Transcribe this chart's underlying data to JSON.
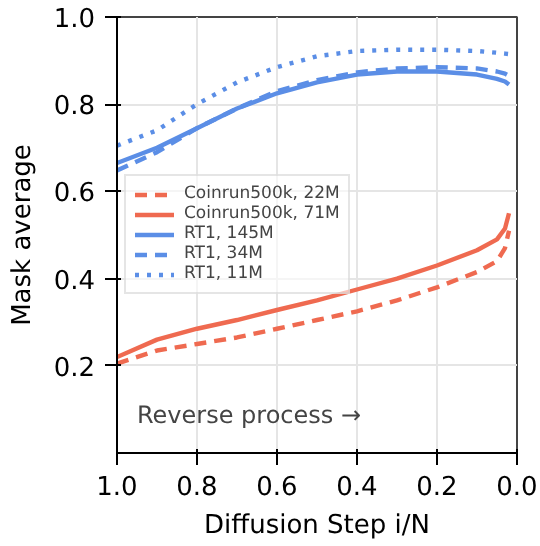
{
  "chart_data": {
    "type": "line",
    "xlabel": "Diffusion Step i/N",
    "ylabel": "Mask average",
    "x": [
      1.0,
      0.9,
      0.8,
      0.7,
      0.6,
      0.5,
      0.4,
      0.3,
      0.2,
      0.1,
      0.05,
      0.03,
      0.02
    ],
    "xlim": [
      1.0,
      0.0
    ],
    "xticks": [
      {
        "value": 1.0,
        "label": "1.0"
      },
      0.8,
      0.6,
      0.4,
      0.2,
      {
        "value": 0.0,
        "label": "0.0"
      }
    ],
    "ylim": [
      0.0,
      1.0
    ],
    "yticks": [
      0.2,
      0.4,
      0.6,
      0.8,
      {
        "value": 1.0,
        "label": "1.0"
      }
    ],
    "grid": true,
    "legend": "left",
    "annotations": [
      "Reverse process →"
    ],
    "series": [
      {
        "name": "Coinrun500k, 22M",
        "color": "#ef6a50",
        "line_style": "dashed",
        "values": [
          0.205,
          0.235,
          0.25,
          0.265,
          0.285,
          0.305,
          0.325,
          0.35,
          0.38,
          0.415,
          0.44,
          0.47,
          0.51
        ]
      },
      {
        "name": "Coinrun500k, 71M",
        "color": "#ef6a50",
        "line_style": "solid",
        "values": [
          0.22,
          0.26,
          0.285,
          0.305,
          0.328,
          0.35,
          0.375,
          0.4,
          0.43,
          0.465,
          0.49,
          0.515,
          0.55
        ]
      },
      {
        "name": "RT1, 145M",
        "color": "#5b8ee6",
        "line_style": "solid",
        "values": [
          0.665,
          0.7,
          0.745,
          0.79,
          0.825,
          0.85,
          0.868,
          0.875,
          0.875,
          0.868,
          0.858,
          0.852,
          0.845
        ]
      },
      {
        "name": "RT1, 34M",
        "color": "#5b8ee6",
        "line_style": "dashed",
        "values": [
          0.648,
          0.69,
          0.745,
          0.79,
          0.83,
          0.855,
          0.873,
          0.882,
          0.885,
          0.882,
          0.875,
          0.87,
          0.865
        ]
      },
      {
        "name": "RT1, 11M",
        "color": "#5b8ee6",
        "line_style": "dotted",
        "values": [
          0.705,
          0.74,
          0.8,
          0.85,
          0.885,
          0.91,
          0.922,
          0.925,
          0.925,
          0.922,
          0.918,
          0.916,
          0.915
        ]
      }
    ]
  }
}
